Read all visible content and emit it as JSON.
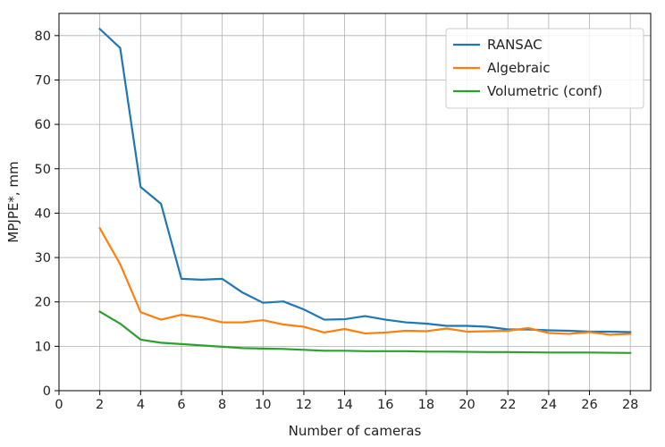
{
  "chart_data": {
    "type": "line",
    "title": "",
    "xlabel": "Number of cameras",
    "ylabel": "MPJPE*, mm",
    "xlim": [
      0,
      29
    ],
    "ylim": [
      0,
      85
    ],
    "xticks": [
      0,
      2,
      4,
      6,
      8,
      10,
      12,
      14,
      16,
      18,
      20,
      22,
      24,
      26,
      28
    ],
    "yticks": [
      0,
      10,
      20,
      30,
      40,
      50,
      60,
      70,
      80
    ],
    "grid": true,
    "legend_position": "top-right",
    "x": [
      2,
      3,
      4,
      5,
      6,
      7,
      8,
      9,
      10,
      11,
      12,
      13,
      14,
      15,
      16,
      17,
      18,
      19,
      20,
      21,
      22,
      23,
      24,
      25,
      26,
      27,
      28
    ],
    "series": [
      {
        "name": "RANSAC",
        "color": "#1f77b4",
        "values": [
          81.5,
          77.2,
          45.9,
          42.1,
          25.2,
          25.0,
          25.2,
          22.1,
          19.8,
          20.1,
          18.3,
          16.0,
          16.1,
          16.8,
          16.0,
          15.4,
          15.1,
          14.6,
          14.6,
          14.4,
          13.8,
          13.8,
          13.6,
          13.5,
          13.3,
          13.3,
          13.2
        ]
      },
      {
        "name": "Algebraic",
        "color": "#ff7f0e",
        "values": [
          36.6,
          28.5,
          17.7,
          16.0,
          17.1,
          16.5,
          15.4,
          15.4,
          15.9,
          14.9,
          14.4,
          13.1,
          13.9,
          12.9,
          13.1,
          13.5,
          13.4,
          14.0,
          13.3,
          13.4,
          13.5,
          14.1,
          13.0,
          12.8,
          13.2,
          12.6,
          12.8
        ]
      },
      {
        "name": "Volumetric (conf)",
        "color": "#2ca02c",
        "values": [
          17.8,
          15.1,
          11.5,
          10.8,
          10.5,
          10.2,
          9.9,
          9.6,
          9.5,
          9.4,
          9.2,
          9.0,
          9.0,
          8.9,
          8.9,
          8.9,
          8.8,
          8.8,
          8.75,
          8.7,
          8.7,
          8.65,
          8.6,
          8.6,
          8.6,
          8.55,
          8.5
        ]
      }
    ]
  }
}
